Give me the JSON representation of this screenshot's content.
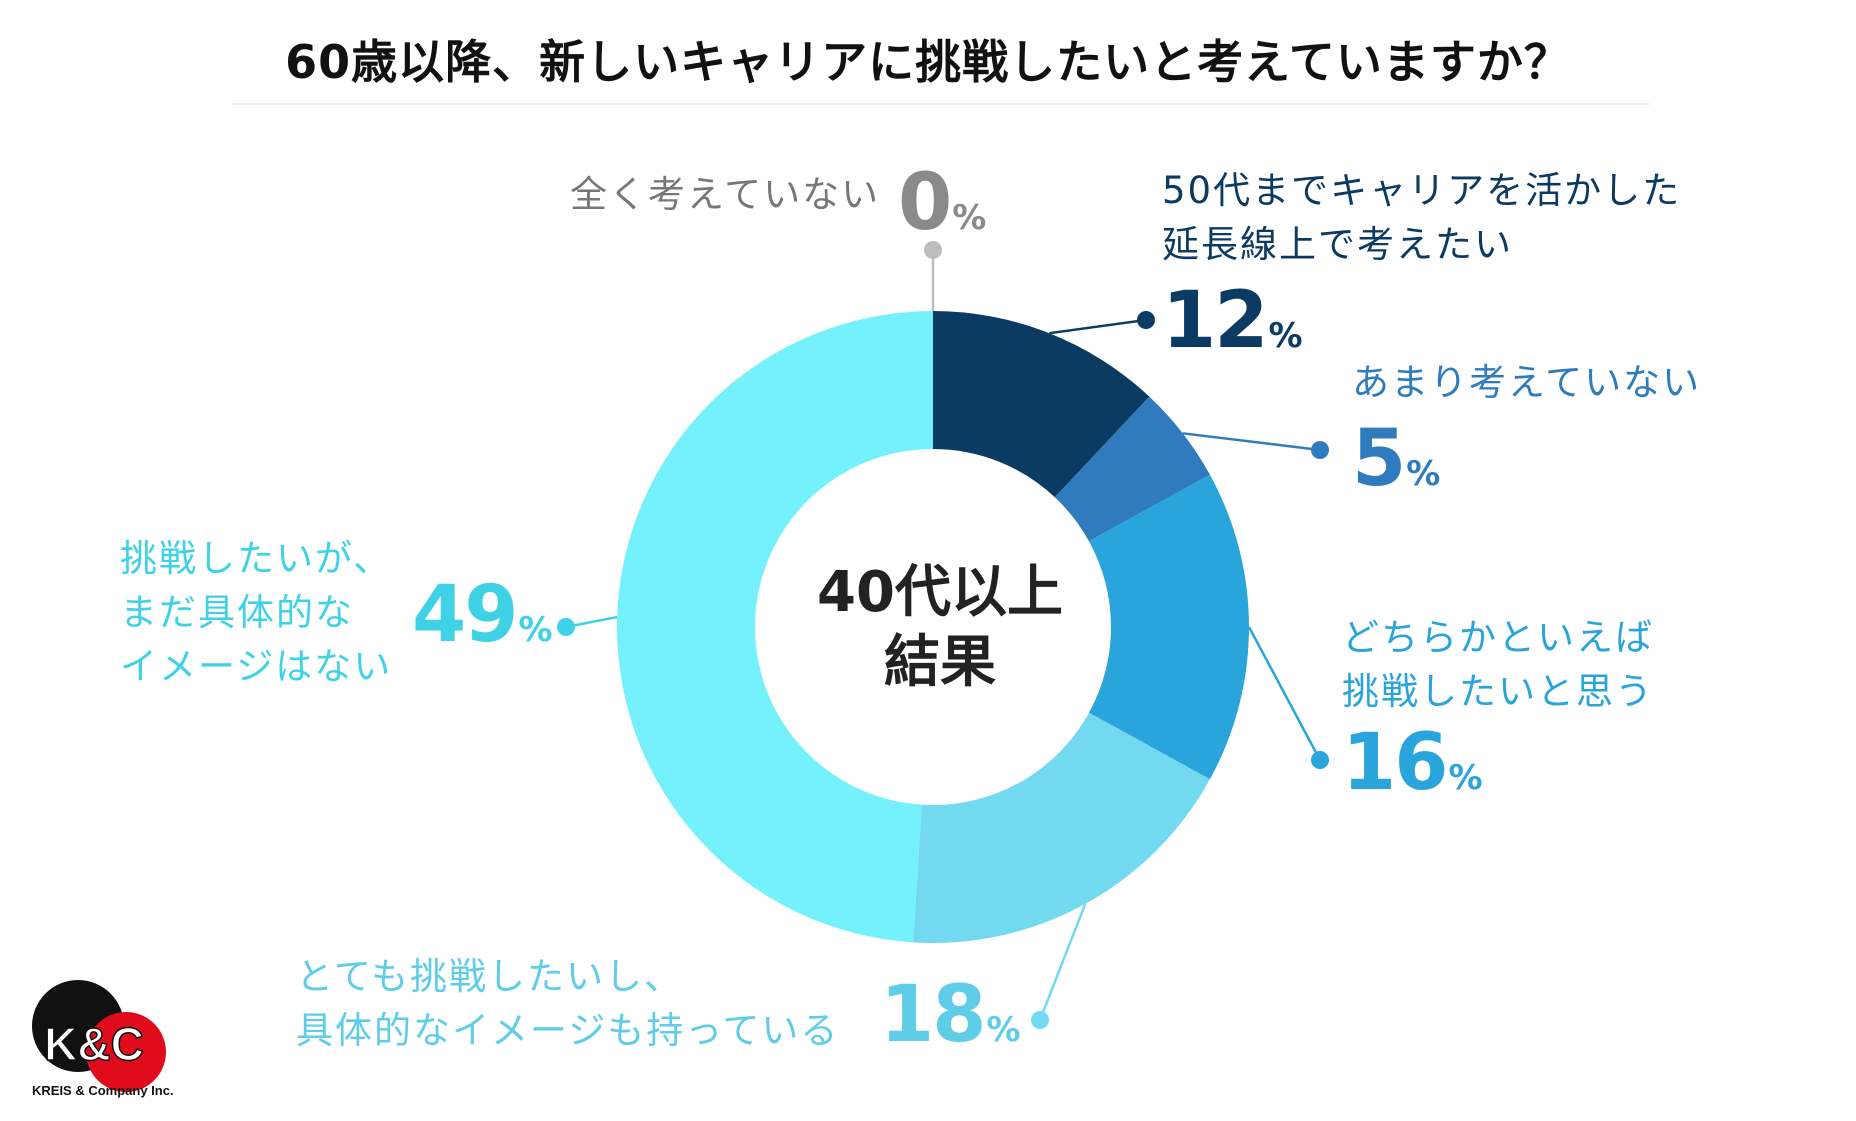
{
  "title": "60歳以降、新しいキャリアに挑戦したいと考えていますか？",
  "center_label": [
    "40代以上",
    "結果"
  ],
  "colors": {
    "s12": "#0b3a63",
    "s5": "#2f7bbd",
    "s16": "#2aa5dc",
    "s18": "#72d9f1",
    "s49": "#74f1fd",
    "s0": "#bdbdbd"
  },
  "chart_data": {
    "type": "pie",
    "style": "donut",
    "title": "60歳以降、新しいキャリアに挑戦したいと考えていますか？",
    "center_label": "40代以上 結果",
    "unit": "%",
    "slices": [
      {
        "label": "50代までキャリアを活かした延長線上で考えたい",
        "value": 12,
        "color": "#0b3a63"
      },
      {
        "label": "あまり考えていない",
        "value": 5,
        "color": "#2f7bbd"
      },
      {
        "label": "どちらかといえば挑戦したいと思う",
        "value": 16,
        "color": "#2aa5dc"
      },
      {
        "label": "とても挑戦したいし、具体的なイメージも持っている",
        "value": 18,
        "color": "#72d9f1"
      },
      {
        "label": "挑戦したいが、まだ具体的なイメージはない",
        "value": 49,
        "color": "#74f1fd"
      },
      {
        "label": "全く考えていない",
        "value": 0,
        "color": "#bdbdbd"
      }
    ]
  },
  "labels": {
    "s0": {
      "lines": [
        "全く考えていない"
      ],
      "value": "0",
      "unit": "%"
    },
    "s12": {
      "lines": [
        "50代までキャリアを活かした",
        "延長線上で考えたい"
      ],
      "value": "12",
      "unit": "%"
    },
    "s5": {
      "lines": [
        "あまり考えていない"
      ],
      "value": "5",
      "unit": "%"
    },
    "s16": {
      "lines": [
        "どちらかといえば",
        "挑戦したいと思う"
      ],
      "value": "16",
      "unit": "%"
    },
    "s18": {
      "lines": [
        "とても挑戦したいし、",
        "具体的なイメージも持っている"
      ],
      "value": "18",
      "unit": "%"
    },
    "s49": {
      "lines": [
        "挑戦したいが、",
        "まだ具体的な",
        "イメージはない"
      ],
      "value": "49",
      "unit": "%"
    }
  },
  "logo": {
    "mark": "K&C",
    "text": "KREIS & Company Inc."
  }
}
